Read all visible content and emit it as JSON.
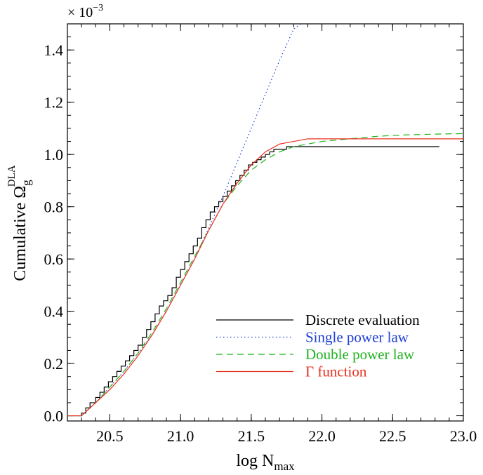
{
  "chart_data": {
    "type": "line",
    "title": "",
    "xlabel": "log N",
    "xlabel_sub": "max",
    "ylabel": "Cumulative Ω",
    "ylabel_sub": "g",
    "ylabel_sup": "DLA",
    "y_multiplier": "× 10",
    "y_multiplier_exp": "−3",
    "xlim": [
      20.2,
      23.0
    ],
    "ylim": [
      -0.02,
      1.5
    ],
    "x_ticks": [
      20.5,
      21.0,
      21.5,
      22.0,
      22.5,
      23.0
    ],
    "x_tick_labels": [
      "20.5",
      "21.0",
      "21.5",
      "22.0",
      "22.5",
      "23.0"
    ],
    "y_ticks": [
      0.0,
      0.2,
      0.4,
      0.6,
      0.8,
      1.0,
      1.2,
      1.4
    ],
    "y_tick_labels": [
      "0.0",
      "0.2",
      "0.4",
      "0.6",
      "0.8",
      "1.0",
      "1.2",
      "1.4"
    ],
    "grid": false,
    "legend_position": "bottom-right",
    "series": [
      {
        "name": "Discrete evaluation",
        "color": "#000000",
        "style": "step",
        "x": [
          20.2,
          20.3,
          20.33,
          20.36,
          20.4,
          20.43,
          20.46,
          20.49,
          20.52,
          20.55,
          20.58,
          20.61,
          20.64,
          20.67,
          20.7,
          20.73,
          20.76,
          20.79,
          20.82,
          20.85,
          20.88,
          20.91,
          20.94,
          20.97,
          21.0,
          21.03,
          21.06,
          21.09,
          21.12,
          21.15,
          21.18,
          21.21,
          21.24,
          21.27,
          21.3,
          21.33,
          21.36,
          21.39,
          21.42,
          21.45,
          21.48,
          21.51,
          21.54,
          21.57,
          21.6,
          21.63,
          21.66,
          21.7,
          21.75,
          21.8,
          21.9,
          22.83
        ],
        "y": [
          0.0,
          0.01,
          0.03,
          0.05,
          0.07,
          0.09,
          0.11,
          0.13,
          0.15,
          0.17,
          0.19,
          0.21,
          0.23,
          0.25,
          0.27,
          0.3,
          0.33,
          0.36,
          0.39,
          0.42,
          0.44,
          0.46,
          0.49,
          0.53,
          0.56,
          0.59,
          0.62,
          0.65,
          0.68,
          0.72,
          0.75,
          0.78,
          0.8,
          0.82,
          0.84,
          0.86,
          0.88,
          0.9,
          0.92,
          0.94,
          0.96,
          0.97,
          0.98,
          0.99,
          1.0,
          1.01,
          1.02,
          1.02,
          1.03,
          1.03,
          1.03,
          1.03
        ]
      },
      {
        "name": "Single power law",
        "color": "#1f3fd6",
        "style": "dotted",
        "x": [
          20.2,
          20.3,
          20.4,
          20.5,
          20.6,
          20.7,
          20.8,
          20.9,
          21.0,
          21.1,
          21.2,
          21.3,
          21.4,
          21.5,
          21.6,
          21.7,
          21.8,
          21.85
        ],
        "y": [
          0.0,
          0.0,
          0.05,
          0.11,
          0.17,
          0.24,
          0.31,
          0.4,
          0.5,
          0.6,
          0.72,
          0.84,
          0.97,
          1.1,
          1.23,
          1.36,
          1.48,
          1.5
        ]
      },
      {
        "name": "Double power law",
        "color": "#1fb31f",
        "style": "dashed",
        "x": [
          20.2,
          20.3,
          20.4,
          20.5,
          20.6,
          20.7,
          20.8,
          20.9,
          21.0,
          21.1,
          21.2,
          21.3,
          21.4,
          21.5,
          21.6,
          21.7,
          21.8,
          21.9,
          22.0,
          22.2,
          22.4,
          22.6,
          22.8,
          23.0
        ],
        "y": [
          0.0,
          0.0,
          0.05,
          0.11,
          0.17,
          0.24,
          0.32,
          0.41,
          0.51,
          0.61,
          0.71,
          0.81,
          0.88,
          0.94,
          0.98,
          1.01,
          1.03,
          1.04,
          1.05,
          1.06,
          1.07,
          1.075,
          1.078,
          1.08
        ]
      },
      {
        "name": "Γ function",
        "color": "#e8301e",
        "style": "solid",
        "x": [
          20.2,
          20.3,
          20.4,
          20.5,
          20.6,
          20.7,
          20.8,
          20.9,
          21.0,
          21.1,
          21.2,
          21.3,
          21.4,
          21.5,
          21.6,
          21.7,
          21.8,
          21.9,
          22.0,
          22.2,
          22.5,
          23.0
        ],
        "y": [
          0.0,
          0.0,
          0.05,
          0.1,
          0.16,
          0.23,
          0.31,
          0.4,
          0.5,
          0.6,
          0.71,
          0.81,
          0.89,
          0.96,
          1.01,
          1.04,
          1.05,
          1.06,
          1.06,
          1.06,
          1.06,
          1.06
        ]
      }
    ]
  }
}
